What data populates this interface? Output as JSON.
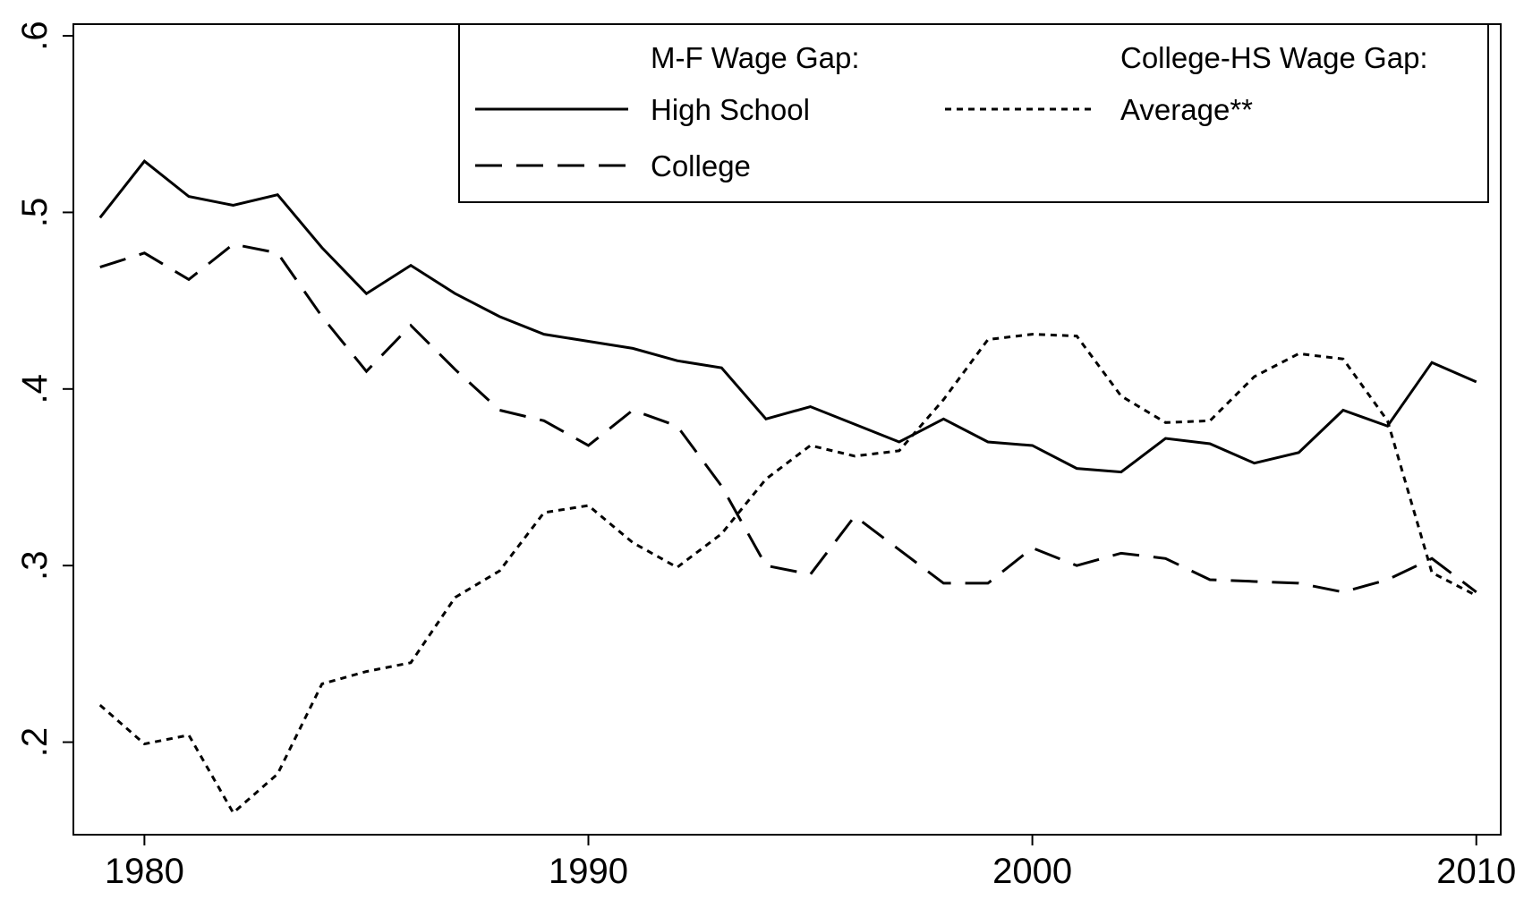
{
  "chart_data": {
    "type": "line",
    "x": [
      1979,
      1980,
      1981,
      1982,
      1983,
      1984,
      1985,
      1986,
      1987,
      1988,
      1989,
      1990,
      1991,
      1992,
      1993,
      1994,
      1995,
      1996,
      1997,
      1998,
      1999,
      2000,
      2001,
      2002,
      2003,
      2004,
      2005,
      2006,
      2007,
      2008,
      2009,
      2010
    ],
    "xlim": [
      1978.4,
      2010.55
    ],
    "xticks": [
      1980,
      1990,
      2000,
      2010
    ],
    "ylim": [
      0.1476,
      0.6066
    ],
    "yticks": [
      {
        "value": 0.2,
        "label": ".2"
      },
      {
        "value": 0.3,
        "label": ".3"
      },
      {
        "value": 0.4,
        "label": ".4"
      },
      {
        "value": 0.5,
        "label": ".5"
      },
      {
        "value": 0.6,
        "label": ".6"
      }
    ],
    "legend_headers": [
      "M-F Wage Gap:",
      "College-HS Wage Gap:"
    ],
    "series": [
      {
        "name": "High School",
        "color": "#000000",
        "dash": "solid",
        "values": [
          0.497,
          0.529,
          0.509,
          0.504,
          0.51,
          0.48,
          0.454,
          0.47,
          0.454,
          0.441,
          0.431,
          0.427,
          0.423,
          0.416,
          0.412,
          0.383,
          0.39,
          0.38,
          0.37,
          0.383,
          0.37,
          0.368,
          0.355,
          0.353,
          0.372,
          0.369,
          0.358,
          0.364,
          0.388,
          0.379,
          0.415,
          0.404
        ]
      },
      {
        "name": "College",
        "color": "#000000",
        "dash": "dashed",
        "values": [
          0.469,
          0.477,
          0.462,
          0.482,
          0.477,
          0.441,
          0.41,
          0.436,
          0.411,
          0.388,
          0.382,
          0.368,
          0.388,
          0.379,
          0.345,
          0.3,
          0.295,
          0.328,
          0.309,
          0.29,
          0.29,
          0.31,
          0.3,
          0.307,
          0.304,
          0.292,
          0.291,
          0.29,
          0.285,
          0.292,
          0.304,
          0.285
        ]
      },
      {
        "name": "Average**",
        "color": "#000000",
        "dash": "dotted",
        "values": [
          0.221,
          0.199,
          0.204,
          0.16,
          0.182,
          0.233,
          0.24,
          0.245,
          0.282,
          0.297,
          0.33,
          0.334,
          0.313,
          0.299,
          0.318,
          0.349,
          0.368,
          0.362,
          0.365,
          0.394,
          0.428,
          0.431,
          0.43,
          0.396,
          0.381,
          0.382,
          0.407,
          0.42,
          0.417,
          0.382,
          0.296,
          0.283
        ]
      }
    ]
  }
}
